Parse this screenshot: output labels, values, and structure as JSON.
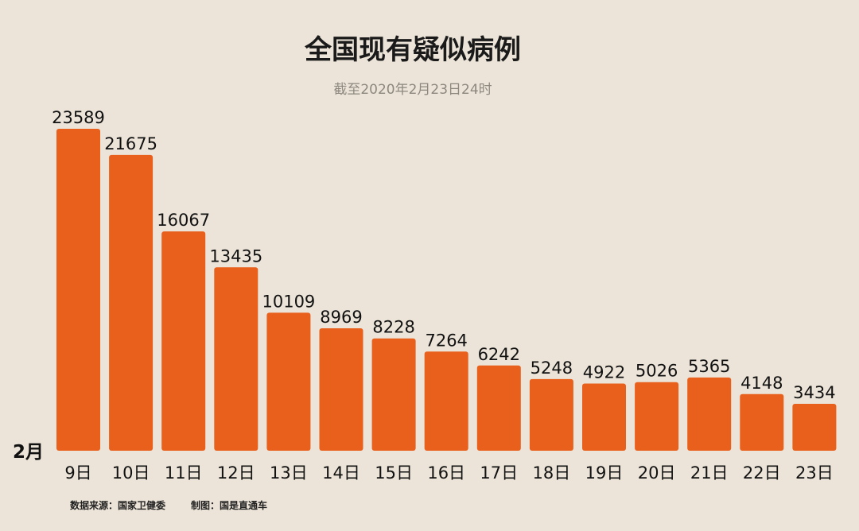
{
  "chart_data": {
    "type": "bar",
    "title": "全国现有疑似病例",
    "subtitle": "截至2020年2月23日24时",
    "month_label": "2月",
    "categories": [
      "9日",
      "10日",
      "11日",
      "12日",
      "13日",
      "14日",
      "15日",
      "16日",
      "17日",
      "18日",
      "19日",
      "20日",
      "21日",
      "22日",
      "23日"
    ],
    "values": [
      23589,
      21675,
      16067,
      13435,
      10109,
      8969,
      8228,
      7264,
      6242,
      5248,
      4922,
      5026,
      5365,
      4148,
      3434
    ],
    "ylim": [
      0,
      23589
    ],
    "grid": false,
    "legend": "none",
    "bar_color": "#e8601c",
    "background_color": "#ece4d8"
  },
  "footer": {
    "source": "数据来源：国家卫健委",
    "credit": "制图：国是直通车"
  }
}
